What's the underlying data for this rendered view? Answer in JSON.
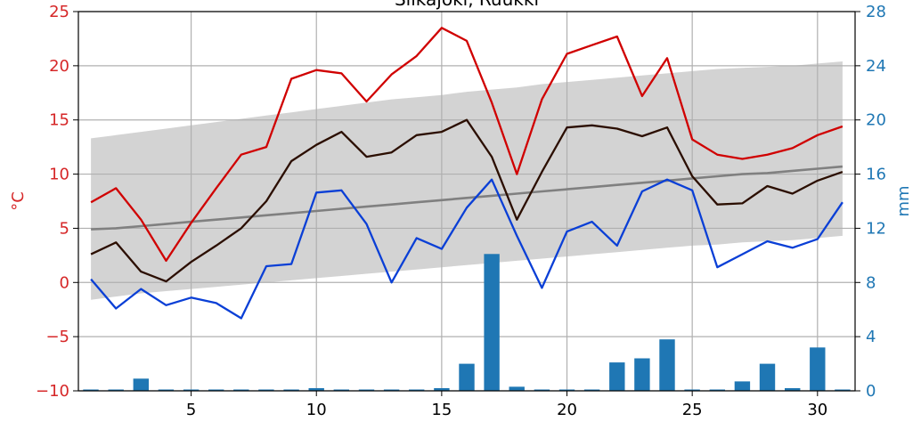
{
  "chart_data": {
    "type": "line",
    "title": "Siikajoki, Ruukki",
    "x": [
      1,
      2,
      3,
      4,
      5,
      6,
      7,
      8,
      9,
      10,
      11,
      12,
      13,
      14,
      15,
      16,
      17,
      18,
      19,
      20,
      21,
      22,
      23,
      24,
      25,
      26,
      27,
      28,
      29,
      30,
      31
    ],
    "xlim": [
      0.5,
      31.5
    ],
    "xticks": [
      5,
      10,
      15,
      20,
      25,
      30
    ],
    "left_axis": {
      "label": "°C",
      "ylim": [
        -10,
        25
      ],
      "ticks": [
        -10,
        -5,
        0,
        5,
        10,
        15,
        20,
        25
      ],
      "tick_labels": [
        "−10",
        "−5",
        "0",
        "5",
        "10",
        "15",
        "20",
        "25"
      ],
      "color": "#d62728"
    },
    "right_axis": {
      "label": "mm",
      "ylim": [
        0,
        28
      ],
      "ticks": [
        0,
        4,
        8,
        12,
        16,
        20,
        24,
        28
      ],
      "tick_labels": [
        "0",
        "4",
        "8",
        "12",
        "16",
        "20",
        "24",
        "28"
      ],
      "color": "#1f77b4"
    },
    "grid": true,
    "series": [
      {
        "kind": "band",
        "axis": "left",
        "color": "#d3d3d3",
        "upper": [
          13.3,
          13.6,
          13.9,
          14.2,
          14.5,
          14.8,
          15.1,
          15.4,
          15.7,
          16.0,
          16.3,
          16.6,
          16.9,
          17.1,
          17.3,
          17.6,
          17.8,
          18.0,
          18.3,
          18.5,
          18.7,
          18.9,
          19.1,
          19.3,
          19.5,
          19.7,
          19.8,
          19.9,
          20.0,
          20.2,
          20.4
        ],
        "lower": [
          -1.6,
          -1.3,
          -1.0,
          -0.8,
          -0.6,
          -0.4,
          -0.2,
          0.0,
          0.2,
          0.4,
          0.6,
          0.8,
          1.0,
          1.2,
          1.4,
          1.6,
          1.8,
          2.0,
          2.2,
          2.4,
          2.6,
          2.8,
          3.0,
          3.2,
          3.4,
          3.5,
          3.7,
          3.8,
          3.9,
          4.1,
          4.3
        ]
      },
      {
        "kind": "line",
        "axis": "left",
        "color": "#808080",
        "values": [
          4.9,
          5.0,
          5.2,
          5.4,
          5.6,
          5.8,
          6.0,
          6.2,
          6.4,
          6.6,
          6.8,
          7.0,
          7.2,
          7.4,
          7.6,
          7.8,
          8.0,
          8.2,
          8.4,
          8.6,
          8.8,
          9.0,
          9.2,
          9.4,
          9.6,
          9.8,
          10.0,
          10.1,
          10.3,
          10.5,
          10.7
        ]
      },
      {
        "kind": "bar",
        "axis": "right",
        "color": "#1f77b4",
        "values": [
          0.1,
          0.1,
          0.9,
          0.1,
          0.1,
          0.1,
          0.1,
          0.1,
          0.1,
          0.2,
          0.1,
          0.1,
          0.1,
          0.1,
          0.2,
          2.0,
          10.1,
          0.3,
          0.1,
          0.1,
          0.1,
          2.1,
          2.4,
          3.8,
          0.1,
          0.1,
          0.7,
          2.0,
          0.2,
          3.2,
          0.1
        ]
      },
      {
        "kind": "line",
        "axis": "left",
        "color": "#d00000",
        "values": [
          7.4,
          8.7,
          5.8,
          2.0,
          5.5,
          8.7,
          11.8,
          12.5,
          18.8,
          19.6,
          19.3,
          16.7,
          19.2,
          20.9,
          23.5,
          22.3,
          16.6,
          10.0,
          16.9,
          21.1,
          21.9,
          22.7,
          17.2,
          20.7,
          13.2,
          11.8,
          11.4,
          11.8,
          12.4,
          13.6,
          14.4
        ]
      },
      {
        "kind": "line",
        "axis": "left",
        "color": "#2b0e00",
        "values": [
          2.6,
          3.7,
          1.0,
          0.1,
          1.9,
          3.4,
          5.0,
          7.5,
          11.2,
          12.7,
          13.9,
          11.6,
          12.0,
          13.6,
          13.9,
          15.0,
          11.6,
          5.8,
          10.2,
          14.3,
          14.5,
          14.2,
          13.5,
          14.3,
          9.8,
          7.2,
          7.3,
          8.9,
          8.2,
          9.4,
          10.2
        ]
      },
      {
        "kind": "line",
        "axis": "left",
        "color": "#0a3fd6",
        "values": [
          0.3,
          -2.4,
          -0.6,
          -2.1,
          -1.4,
          -1.9,
          -3.3,
          1.5,
          1.7,
          8.3,
          8.5,
          5.4,
          0.0,
          4.1,
          3.1,
          6.9,
          9.5,
          4.3,
          -0.5,
          4.7,
          5.6,
          3.4,
          8.4,
          9.5,
          8.5,
          1.4,
          2.6,
          3.8,
          3.2,
          4.0,
          7.4
        ]
      }
    ]
  }
}
